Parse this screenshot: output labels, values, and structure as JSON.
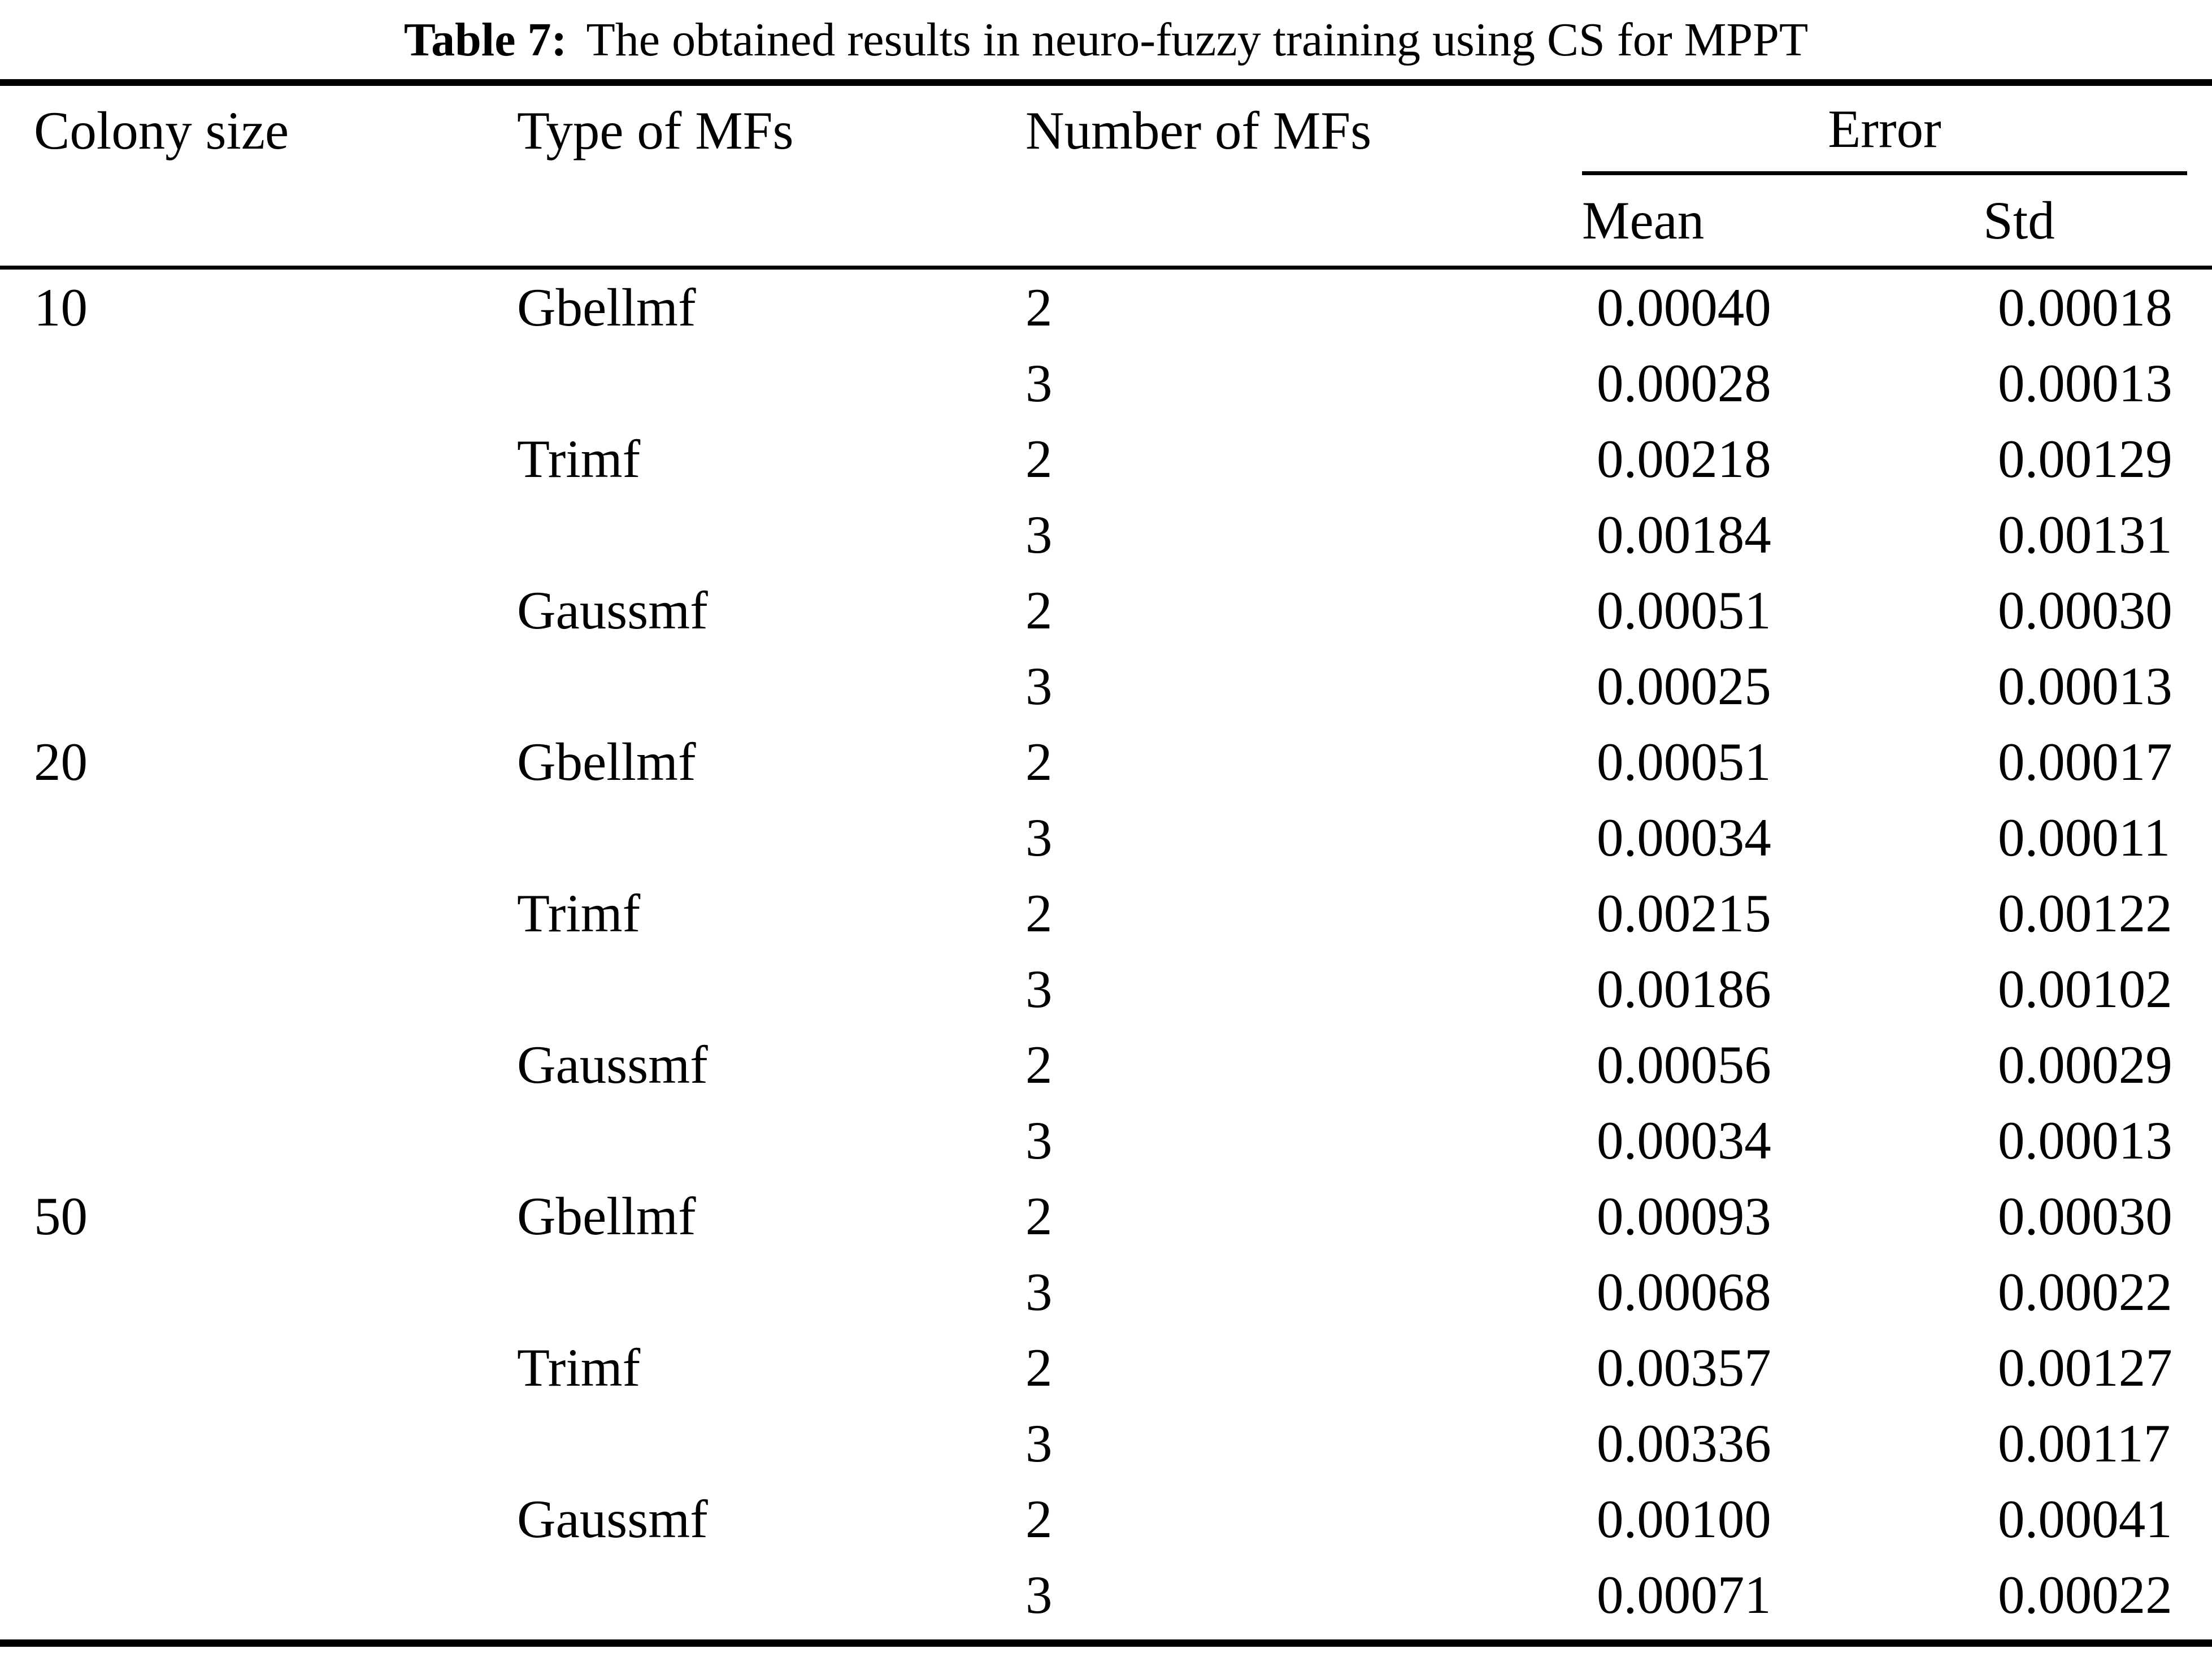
{
  "title": {
    "label": "Table 7:",
    "text": "The obtained results in neuro-fuzzy training using CS for MPPT"
  },
  "table": {
    "headers": {
      "colony_size": "Colony size",
      "mf_type": "Type of MFs",
      "mf_count": "Number of MFs",
      "error_group": "Error",
      "mean": "Mean",
      "std": "Std"
    },
    "rows": [
      {
        "colony": "10",
        "type": "Gbellmf",
        "num": "2",
        "mean": "0.00040",
        "std": "0.00018"
      },
      {
        "colony": "",
        "type": "",
        "num": "3",
        "mean": "0.00028",
        "std": "0.00013"
      },
      {
        "colony": "",
        "type": "Trimf",
        "num": "2",
        "mean": "0.00218",
        "std": "0.00129"
      },
      {
        "colony": "",
        "type": "",
        "num": "3",
        "mean": "0.00184",
        "std": "0.00131"
      },
      {
        "colony": "",
        "type": "Gaussmf",
        "num": "2",
        "mean": "0.00051",
        "std": "0.00030"
      },
      {
        "colony": "",
        "type": "",
        "num": "3",
        "mean": "0.00025",
        "std": "0.00013"
      },
      {
        "colony": "20",
        "type": "Gbellmf",
        "num": "2",
        "mean": "0.00051",
        "std": "0.00017"
      },
      {
        "colony": "",
        "type": "",
        "num": "3",
        "mean": "0.00034",
        "std": "0.00011"
      },
      {
        "colony": "",
        "type": "Trimf",
        "num": "2",
        "mean": "0.00215",
        "std": "0.00122"
      },
      {
        "colony": "",
        "type": "",
        "num": "3",
        "mean": "0.00186",
        "std": "0.00102"
      },
      {
        "colony": "",
        "type": "Gaussmf",
        "num": "2",
        "mean": "0.00056",
        "std": "0.00029"
      },
      {
        "colony": "",
        "type": "",
        "num": "3",
        "mean": "0.00034",
        "std": "0.00013"
      },
      {
        "colony": "50",
        "type": "Gbellmf",
        "num": "2",
        "mean": "0.00093",
        "std": "0.00030"
      },
      {
        "colony": "",
        "type": "",
        "num": "3",
        "mean": "0.00068",
        "std": "0.00022"
      },
      {
        "colony": "",
        "type": "Trimf",
        "num": "2",
        "mean": "0.00357",
        "std": "0.00127"
      },
      {
        "colony": "",
        "type": "",
        "num": "3",
        "mean": "0.00336",
        "std": "0.00117"
      },
      {
        "colony": "",
        "type": "Gaussmf",
        "num": "2",
        "mean": "0.00100",
        "std": "0.00041"
      },
      {
        "colony": "",
        "type": "",
        "num": "3",
        "mean": "0.00071",
        "std": "0.00022"
      }
    ]
  },
  "chart_data": {
    "type": "table",
    "title": "Table 7: The obtained results in neuro-fuzzy training using CS for MPPT",
    "columns": [
      "Colony size",
      "Type of MFs",
      "Number of MFs",
      "Error Mean",
      "Error Std"
    ],
    "rows": [
      [
        "10",
        "Gbellmf",
        "2",
        "0.00040",
        "0.00018"
      ],
      [
        "10",
        "Gbellmf",
        "3",
        "0.00028",
        "0.00013"
      ],
      [
        "10",
        "Trimf",
        "2",
        "0.00218",
        "0.00129"
      ],
      [
        "10",
        "Trimf",
        "3",
        "0.00184",
        "0.00131"
      ],
      [
        "10",
        "Gaussmf",
        "2",
        "0.00051",
        "0.00030"
      ],
      [
        "10",
        "Gaussmf",
        "3",
        "0.00025",
        "0.00013"
      ],
      [
        "20",
        "Gbellmf",
        "2",
        "0.00051",
        "0.00017"
      ],
      [
        "20",
        "Gbellmf",
        "3",
        "0.00034",
        "0.00011"
      ],
      [
        "20",
        "Trimf",
        "2",
        "0.00215",
        "0.00122"
      ],
      [
        "20",
        "Trimf",
        "3",
        "0.00186",
        "0.00102"
      ],
      [
        "20",
        "Gaussmf",
        "2",
        "0.00056",
        "0.00029"
      ],
      [
        "20",
        "Gaussmf",
        "3",
        "0.00034",
        "0.00013"
      ],
      [
        "50",
        "Gbellmf",
        "2",
        "0.00093",
        "0.00030"
      ],
      [
        "50",
        "Gbellmf",
        "3",
        "0.00068",
        "0.00022"
      ],
      [
        "50",
        "Trimf",
        "2",
        "0.00357",
        "0.00127"
      ],
      [
        "50",
        "Trimf",
        "3",
        "0.00336",
        "0.00117"
      ],
      [
        "50",
        "Gaussmf",
        "2",
        "0.00100",
        "0.00041"
      ],
      [
        "50",
        "Gaussmf",
        "3",
        "0.00071",
        "0.00022"
      ]
    ]
  },
  "colors": {
    "text": "#000000",
    "background": "#ffffff",
    "rule": "#000000"
  }
}
